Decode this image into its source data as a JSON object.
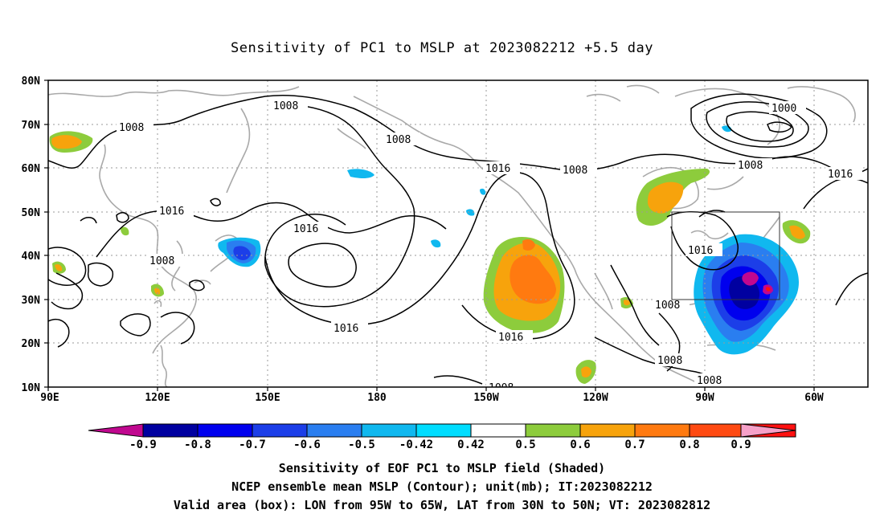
{
  "title": "Sensitivity of PC1 to MSLP at 2023082212 +5.5 day",
  "lat_labels": [
    "80N",
    "70N",
    "60N",
    "50N",
    "40N",
    "30N",
    "20N",
    "10N"
  ],
  "lon_labels": [
    "90E",
    "120E",
    "150E",
    "180",
    "150W",
    "120W",
    "90W",
    "60W"
  ],
  "contour_labels": [
    {
      "id": "c1",
      "text": "1008"
    },
    {
      "id": "c2",
      "text": "1008"
    },
    {
      "id": "c3",
      "text": "1008"
    },
    {
      "id": "c4",
      "text": "1016"
    },
    {
      "id": "c5",
      "text": "1008"
    },
    {
      "id": "c6",
      "text": "1000"
    },
    {
      "id": "c7",
      "text": "1008"
    },
    {
      "id": "c8",
      "text": "1016"
    },
    {
      "id": "c9",
      "text": "1016"
    },
    {
      "id": "c10",
      "text": "1016"
    },
    {
      "id": "c11",
      "text": "1008"
    },
    {
      "id": "c12",
      "text": "1016"
    },
    {
      "id": "c13",
      "text": "1016"
    },
    {
      "id": "c14",
      "text": "1016"
    },
    {
      "id": "c15",
      "text": "1008"
    },
    {
      "id": "c16",
      "text": "1008"
    },
    {
      "id": "c17",
      "text": "1008"
    },
    {
      "id": "c18",
      "text": "1008"
    }
  ],
  "colorbar": {
    "labels": [
      "-0.9",
      "-0.8",
      "-0.7",
      "-0.6",
      "-0.5",
      "-0.42",
      "0.42",
      "0.5",
      "0.6",
      "0.7",
      "0.8",
      "0.9"
    ],
    "colors": [
      "#0000a0",
      "#0000ee",
      "#1c3ee8",
      "#2a7ef0",
      "#10b8ef",
      "#00ddff",
      "#ffffff",
      "#8dcc3c",
      "#f7a30c",
      "#ff7a10",
      "#ff4a12",
      "#ff1010"
    ],
    "low_end_color": "#c0088f",
    "high_end_color": "#f6a0c8"
  },
  "captions": [
    "Sensitivity of EOF PC1 to MSLP field (Shaded)",
    "NCEP ensemble mean MSLP (Contour); unit(mb); IT:2023082212",
    "Valid area (box): LON from 95W to 65W, LAT from 30N to 50N; VT: 2023082812"
  ]
}
